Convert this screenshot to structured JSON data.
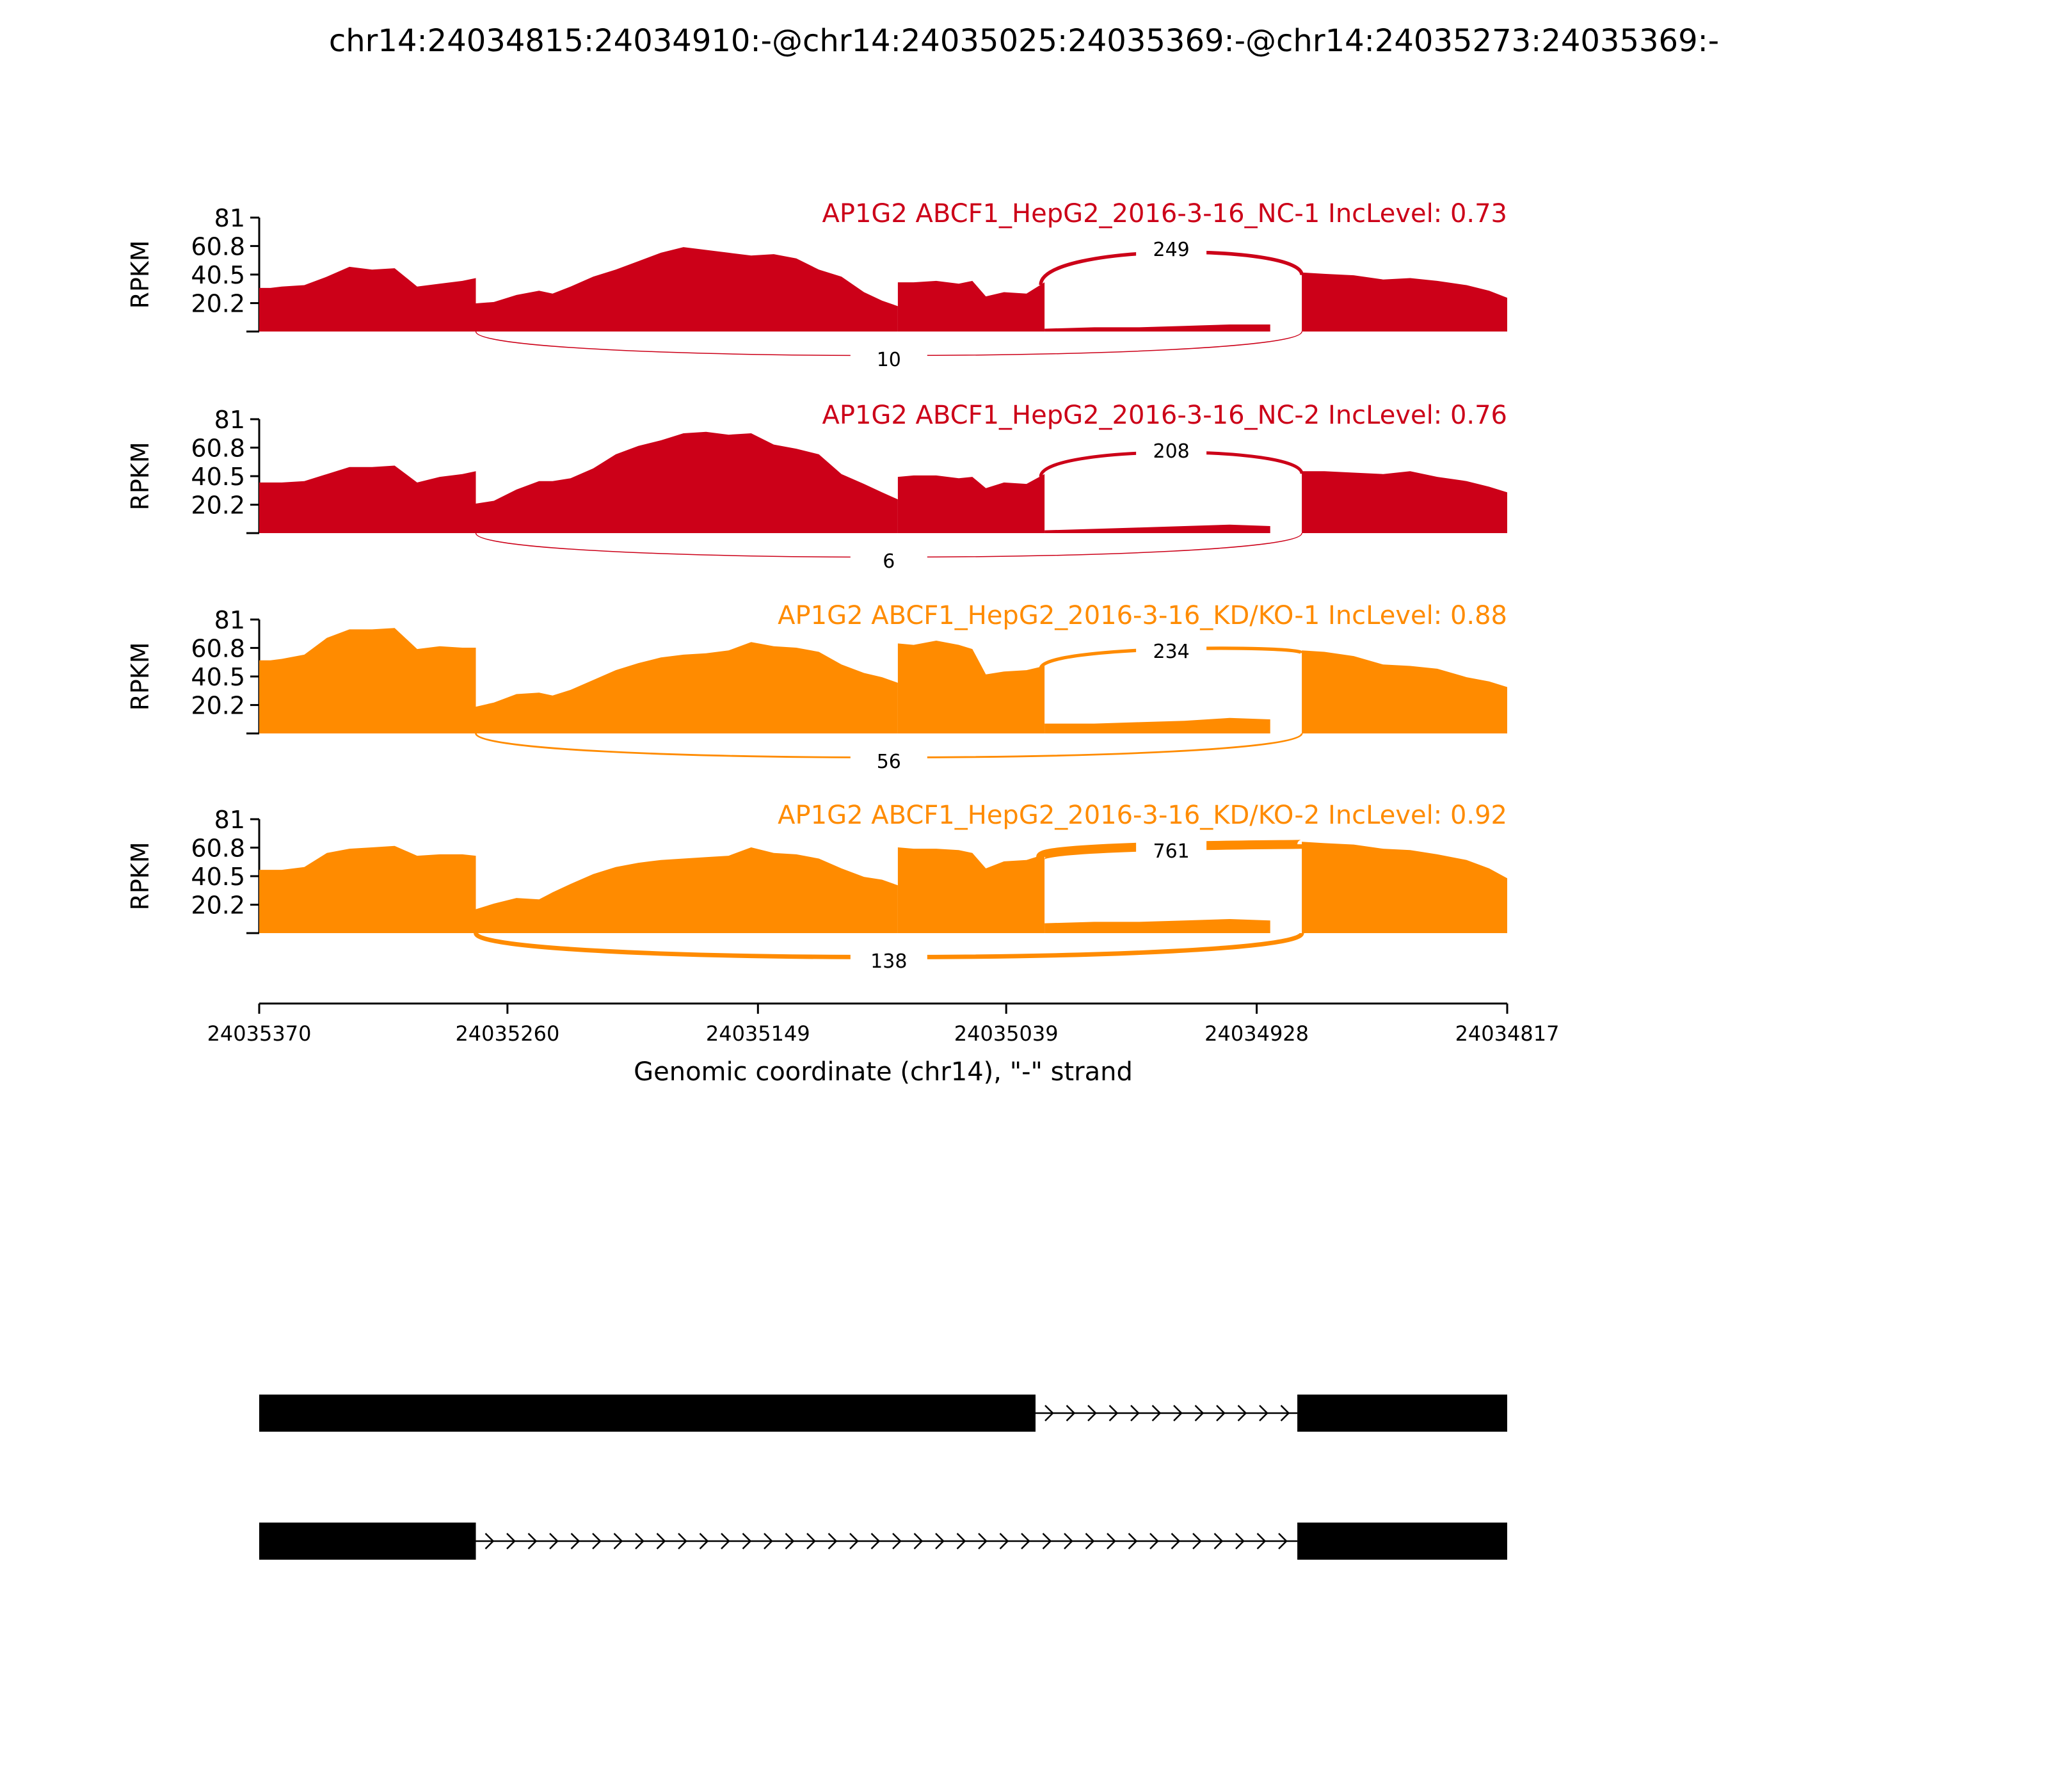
{
  "title": "chr14:24034815:24034910:-@chr14:24035025:24035369:-@chr14:24035273:24035369:-",
  "chart_data": {
    "type": "area",
    "ylabel": "RPKM",
    "ylim": [
      0,
      81
    ],
    "yticks": [
      "20.2",
      "40.5",
      "60.8",
      "81"
    ],
    "xlabel": "Genomic coordinate (chr14), \"-\" strand",
    "xticks": [
      "24035370",
      "24035260",
      "24035149",
      "24035039",
      "24034928",
      "24034817"
    ],
    "x_axis_reversed": true,
    "colors": {
      "NC": "#cc0018",
      "KD": "#ff8b00",
      "gene": "#000000"
    },
    "tracks": [
      {
        "label": "AP1G2 ABCF1_HepG2_2016-3-16_NC-1 IncLevel: 0.73",
        "color": "#cc0018",
        "junction_top_label": "249",
        "junction_bottom_label": "10",
        "segments": [
          {
            "x": [
              24035370,
              24035365,
              24035360,
              24035350,
              24035340,
              24035330,
              24035320,
              24035310,
              24035300,
              24035290,
              24035280,
              24035274
            ],
            "y": [
              31,
              31,
              32,
              33,
              39,
              46,
              44,
              45,
              32,
              34,
              36,
              38
            ]
          },
          {
            "x": [
              24035274,
              24035266,
              24035256,
              24035246,
              24035240,
              24035232,
              24035222,
              24035212,
              24035202,
              24035192,
              24035182,
              24035172,
              24035162,
              24035152,
              24035142,
              24035132,
              24035122,
              24035112,
              24035102,
              24035094,
              24035087
            ],
            "y": [
              20,
              21,
              26,
              29,
              27,
              32,
              39,
              44,
              50,
              56,
              60,
              58,
              56,
              54,
              55,
              52,
              44,
              39,
              28,
              22,
              18
            ]
          },
          {
            "x": [
              24035087,
              24035080,
              24035070,
              24035060,
              24035054,
              24035048,
              24035040,
              24035030,
              24035022
            ],
            "y": [
              35,
              35,
              36,
              34,
              36,
              25,
              28,
              27,
              35
            ]
          },
          {
            "x": [
              24035022,
              24035000,
              24034980,
              24034960,
              24034940,
              24034922
            ],
            "y": [
              2,
              3,
              3,
              4,
              5,
              5
            ]
          },
          {
            "x": [
              24034908,
              24034898,
              24034885,
              24034872,
              24034860,
              24034848,
              24034835,
              24034825,
              24034817
            ],
            "y": [
              42,
              41,
              40,
              37,
              38,
              36,
              33,
              29,
              24
            ]
          }
        ]
      },
      {
        "label": "AP1G2 ABCF1_HepG2_2016-3-16_NC-2 IncLevel: 0.76",
        "color": "#cc0018",
        "junction_top_label": "208",
        "junction_bottom_label": "6",
        "segments": [
          {
            "x": [
              24035370,
              24035365,
              24035360,
              24035350,
              24035340,
              24035330,
              24035320,
              24035310,
              24035300,
              24035290,
              24035280,
              24035274
            ],
            "y": [
              36,
              36,
              36,
              37,
              42,
              47,
              47,
              48,
              36,
              40,
              42,
              44
            ]
          },
          {
            "x": [
              24035274,
              24035266,
              24035256,
              24035246,
              24035240,
              24035232,
              24035222,
              24035212,
              24035202,
              24035192,
              24035182,
              24035172,
              24035162,
              24035152,
              24035142,
              24035132,
              24035122,
              24035112,
              24035102,
              24035094,
              24035087
            ],
            "y": [
              21,
              23,
              31,
              37,
              37,
              39,
              46,
              56,
              62,
              66,
              71,
              72,
              70,
              71,
              63,
              60,
              56,
              42,
              35,
              29,
              24
            ]
          },
          {
            "x": [
              24035087,
              24035080,
              24035070,
              24035060,
              24035054,
              24035048,
              24035040,
              24035030,
              24035022
            ],
            "y": [
              40,
              41,
              41,
              39,
              40,
              32,
              36,
              35,
              42
            ]
          },
          {
            "x": [
              24035022,
              24035000,
              24034980,
              24034960,
              24034940,
              24034922
            ],
            "y": [
              2,
              3,
              4,
              5,
              6,
              5
            ]
          },
          {
            "x": [
              24034908,
              24034898,
              24034885,
              24034872,
              24034860,
              24034848,
              24034835,
              24034825,
              24034817
            ],
            "y": [
              44,
              44,
              43,
              42,
              44,
              40,
              37,
              33,
              29
            ]
          }
        ]
      },
      {
        "label": "AP1G2 ABCF1_HepG2_2016-3-16_KD/KO-1 IncLevel: 0.88",
        "color": "#ff8b00",
        "junction_top_label": "234",
        "junction_bottom_label": "56",
        "segments": [
          {
            "x": [
              24035370,
              24035365,
              24035360,
              24035350,
              24035340,
              24035330,
              24035320,
              24035310,
              24035300,
              24035290,
              24035280,
              24035274
            ],
            "y": [
              52,
              52,
              53,
              56,
              68,
              74,
              74,
              75,
              60,
              62,
              61,
              61
            ]
          },
          {
            "x": [
              24035274,
              24035266,
              24035256,
              24035246,
              24035240,
              24035232,
              24035222,
              24035212,
              24035202,
              24035192,
              24035182,
              24035172,
              24035162,
              24035152,
              24035142,
              24035132,
              24035122,
              24035112,
              24035102,
              24035094,
              24035087
            ],
            "y": [
              19,
              22,
              28,
              29,
              27,
              31,
              38,
              45,
              50,
              54,
              56,
              57,
              59,
              65,
              62,
              61,
              58,
              49,
              43,
              40,
              36
            ]
          },
          {
            "x": [
              24035087,
              24035080,
              24035070,
              24035060,
              24035054,
              24035048,
              24035040,
              24035030,
              24035022
            ],
            "y": [
              64,
              63,
              66,
              63,
              60,
              42,
              44,
              45,
              48
            ]
          },
          {
            "x": [
              24035022,
              24035000,
              24034980,
              24034960,
              24034940,
              24034922
            ],
            "y": [
              7,
              7,
              8,
              9,
              11,
              10
            ]
          },
          {
            "x": [
              24034908,
              24034898,
              24034885,
              24034872,
              24034860,
              24034848,
              24034835,
              24034825,
              24034817
            ],
            "y": [
              59,
              58,
              55,
              49,
              48,
              46,
              40,
              37,
              33
            ]
          }
        ]
      },
      {
        "label": "AP1G2 ABCF1_HepG2_2016-3-16_KD/KO-2 IncLevel: 0.92",
        "color": "#ff8b00",
        "junction_top_label": "761",
        "junction_bottom_label": "138",
        "segments": [
          {
            "x": [
              24035370,
              24035365,
              24035360,
              24035350,
              24035340,
              24035330,
              24035320,
              24035310,
              24035300,
              24035290,
              24035280,
              24035274
            ],
            "y": [
              45,
              45,
              45,
              47,
              57,
              60,
              61,
              62,
              55,
              56,
              56,
              55
            ]
          },
          {
            "x": [
              24035274,
              24035266,
              24035256,
              24035246,
              24035240,
              24035232,
              24035222,
              24035212,
              24035202,
              24035192,
              24035182,
              24035172,
              24035162,
              24035152,
              24035142,
              24035132,
              24035122,
              24035112,
              24035102,
              24035094,
              24035087
            ],
            "y": [
              17,
              21,
              25,
              24,
              29,
              35,
              42,
              47,
              50,
              52,
              53,
              54,
              55,
              61,
              57,
              56,
              53,
              46,
              40,
              38,
              34
            ]
          },
          {
            "x": [
              24035087,
              24035080,
              24035070,
              24035060,
              24035054,
              24035048,
              24035040,
              24035030,
              24035022
            ],
            "y": [
              61,
              60,
              60,
              59,
              57,
              46,
              51,
              52,
              56
            ]
          },
          {
            "x": [
              24035022,
              24035000,
              24034980,
              24034960,
              24034940,
              24034922
            ],
            "y": [
              7,
              8,
              8,
              9,
              10,
              9
            ]
          },
          {
            "x": [
              24034908,
              24034898,
              24034885,
              24034872,
              24034860,
              24034848,
              24034835,
              24034825,
              24034817
            ],
            "y": [
              65,
              64,
              63,
              60,
              59,
              56,
              52,
              46,
              39
            ]
          }
        ]
      }
    ],
    "transcripts": [
      {
        "exons": [
          [
            24035370,
            24035026
          ],
          [
            24034910,
            24034817
          ]
        ]
      },
      {
        "exons": [
          [
            24035370,
            24035274
          ],
          [
            24034910,
            24034817
          ]
        ]
      }
    ]
  }
}
